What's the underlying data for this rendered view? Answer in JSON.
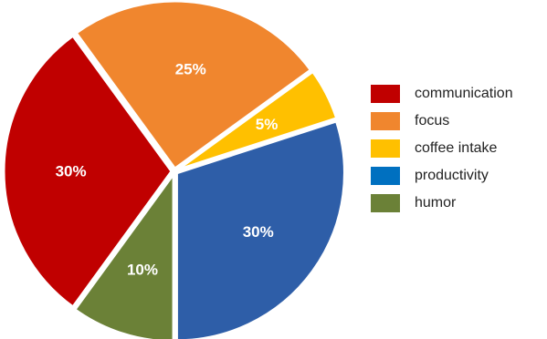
{
  "chart_data": {
    "type": "pie",
    "title": "",
    "categories": [
      "communication",
      "focus",
      "coffee intake",
      "productivity",
      "humor"
    ],
    "values": [
      30,
      25,
      5,
      30,
      10
    ],
    "value_labels": [
      "30%",
      "25%",
      "5%",
      "30%",
      "10%"
    ],
    "slice_colors": [
      "#c00000",
      "#f0862e",
      "#ffc000",
      "#2e5ea8",
      "#6b8137"
    ],
    "legend": {
      "placement": "right",
      "entries": [
        {
          "label": "communication",
          "color": "#c00000"
        },
        {
          "label": "focus",
          "color": "#f0862e"
        },
        {
          "label": "coffee intake",
          "color": "#ffc000"
        },
        {
          "label": "productivity",
          "color": "#0070c0"
        },
        {
          "label": "humor",
          "color": "#6b8137"
        }
      ]
    }
  }
}
